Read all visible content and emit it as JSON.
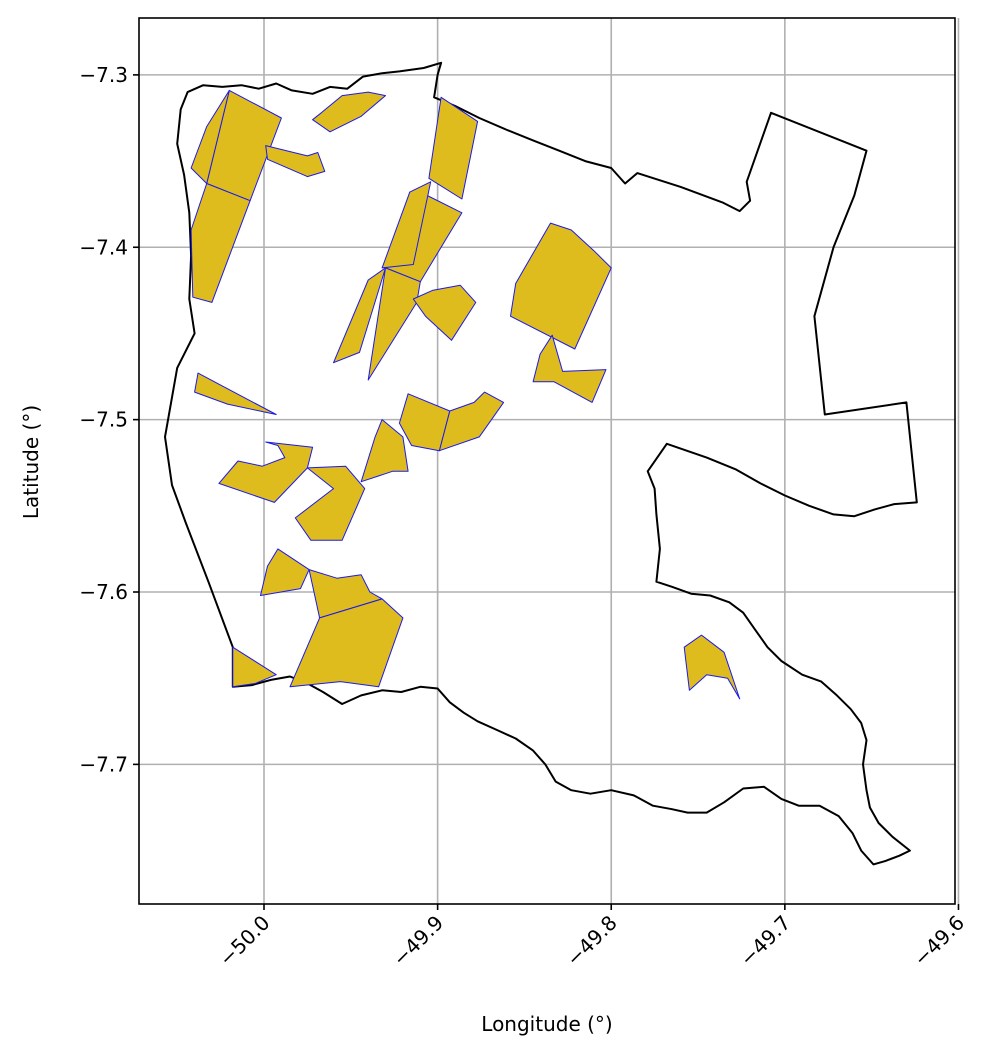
{
  "chart_data": {
    "type": "map",
    "xlabel": "Longitude (°)",
    "ylabel": "Latitude (°)",
    "xlim": [
      -50.072,
      -49.602
    ],
    "ylim": [
      -7.781,
      -7.267
    ],
    "x_ticks": [
      -50.0,
      -49.9,
      -49.8,
      -49.7,
      -49.6
    ],
    "x_tick_labels": [
      "−50.0",
      "−49.9",
      "−49.8",
      "−49.7",
      "−49.6"
    ],
    "y_ticks": [
      -7.3,
      -7.4,
      -7.5,
      -7.6,
      -7.7
    ],
    "y_tick_labels": [
      "−7.3",
      "−7.4",
      "−7.5",
      "−7.6",
      "−7.7"
    ],
    "grid": true,
    "boundary_color": "#000000",
    "parcel_fill": "#dfbc1e",
    "parcel_edge": "#1a1aee",
    "boundary": [
      [
        -50.044,
        -7.31
      ],
      [
        -50.035,
        -7.306
      ],
      [
        -50.024,
        -7.307
      ],
      [
        -50.013,
        -7.306
      ],
      [
        -50.003,
        -7.308
      ],
      [
        -49.993,
        -7.305
      ],
      [
        -49.984,
        -7.309
      ],
      [
        -49.972,
        -7.311
      ],
      [
        -49.962,
        -7.307
      ],
      [
        -49.952,
        -7.308
      ],
      [
        -49.943,
        -7.301
      ],
      [
        -49.932,
        -7.299
      ],
      [
        -49.922,
        -7.298
      ],
      [
        -49.908,
        -7.296
      ],
      [
        -49.898,
        -7.293
      ],
      [
        -49.9,
        -7.3
      ],
      [
        -49.902,
        -7.313
      ],
      [
        -49.89,
        -7.318
      ],
      [
        -49.876,
        -7.325
      ],
      [
        -49.86,
        -7.332
      ],
      [
        -49.845,
        -7.338
      ],
      [
        -49.83,
        -7.344
      ],
      [
        -49.815,
        -7.35
      ],
      [
        -49.8,
        -7.354
      ],
      [
        -49.792,
        -7.363
      ],
      [
        -49.785,
        -7.357
      ],
      [
        -49.76,
        -7.365
      ],
      [
        -49.736,
        -7.374
      ],
      [
        -49.726,
        -7.379
      ],
      [
        -49.72,
        -7.373
      ],
      [
        -49.722,
        -7.362
      ],
      [
        -49.708,
        -7.322
      ],
      [
        -49.653,
        -7.344
      ],
      [
        -49.66,
        -7.37
      ],
      [
        -49.672,
        -7.4
      ],
      [
        -49.683,
        -7.44
      ],
      [
        -49.677,
        -7.497
      ],
      [
        -49.63,
        -7.49
      ],
      [
        -49.624,
        -7.548
      ],
      [
        -49.637,
        -7.549
      ],
      [
        -49.648,
        -7.552
      ],
      [
        -49.66,
        -7.556
      ],
      [
        -49.672,
        -7.555
      ],
      [
        -49.686,
        -7.55
      ],
      [
        -49.7,
        -7.544
      ],
      [
        -49.714,
        -7.537
      ],
      [
        -49.728,
        -7.529
      ],
      [
        -49.745,
        -7.522
      ],
      [
        -49.768,
        -7.514
      ],
      [
        -49.779,
        -7.53
      ],
      [
        -49.775,
        -7.54
      ],
      [
        -49.774,
        -7.555
      ],
      [
        -49.772,
        -7.575
      ],
      [
        -49.774,
        -7.594
      ],
      [
        -49.765,
        -7.597
      ],
      [
        -49.754,
        -7.601
      ],
      [
        -49.743,
        -7.602
      ],
      [
        -49.732,
        -7.606
      ],
      [
        -49.724,
        -7.612
      ],
      [
        -49.717,
        -7.622
      ],
      [
        -49.71,
        -7.632
      ],
      [
        -49.702,
        -7.64
      ],
      [
        -49.69,
        -7.648
      ],
      [
        -49.679,
        -7.652
      ],
      [
        -49.67,
        -7.66
      ],
      [
        -49.662,
        -7.668
      ],
      [
        -49.656,
        -7.676
      ],
      [
        -49.653,
        -7.686
      ],
      [
        -49.655,
        -7.7
      ],
      [
        -49.653,
        -7.715
      ],
      [
        -49.651,
        -7.725
      ],
      [
        -49.646,
        -7.734
      ],
      [
        -49.638,
        -7.742
      ],
      [
        -49.628,
        -7.75
      ],
      [
        -49.634,
        -7.753
      ],
      [
        -49.642,
        -7.756
      ],
      [
        -49.649,
        -7.758
      ],
      [
        -49.656,
        -7.75
      ],
      [
        -49.661,
        -7.74
      ],
      [
        -49.669,
        -7.73
      ],
      [
        -49.68,
        -7.724
      ],
      [
        -49.692,
        -7.724
      ],
      [
        -49.702,
        -7.72
      ],
      [
        -49.712,
        -7.713
      ],
      [
        -49.724,
        -7.714
      ],
      [
        -49.735,
        -7.722
      ],
      [
        -49.745,
        -7.728
      ],
      [
        -49.756,
        -7.728
      ],
      [
        -49.765,
        -7.726
      ],
      [
        -49.776,
        -7.724
      ],
      [
        -49.787,
        -7.718
      ],
      [
        -49.8,
        -7.715
      ],
      [
        -49.812,
        -7.717
      ],
      [
        -49.823,
        -7.715
      ],
      [
        -49.832,
        -7.71
      ],
      [
        -49.838,
        -7.7
      ],
      [
        -49.845,
        -7.692
      ],
      [
        -49.855,
        -7.685
      ],
      [
        -49.866,
        -7.68
      ],
      [
        -49.877,
        -7.675
      ],
      [
        -49.885,
        -7.67
      ],
      [
        -49.893,
        -7.664
      ],
      [
        -49.9,
        -7.656
      ],
      [
        -49.91,
        -7.655
      ],
      [
        -49.921,
        -7.658
      ],
      [
        -49.932,
        -7.657
      ],
      [
        -49.944,
        -7.66
      ],
      [
        -49.955,
        -7.665
      ],
      [
        -49.966,
        -7.658
      ],
      [
        -49.975,
        -7.653
      ],
      [
        -49.985,
        -7.649
      ],
      [
        -49.996,
        -7.651
      ],
      [
        -50.007,
        -7.654
      ],
      [
        -50.018,
        -7.655
      ],
      [
        -50.018,
        -7.632
      ],
      [
        -50.032,
        -7.594
      ],
      [
        -50.045,
        -7.56
      ],
      [
        -50.053,
        -7.538
      ],
      [
        -50.057,
        -7.51
      ],
      [
        -50.05,
        -7.47
      ],
      [
        -50.04,
        -7.45
      ],
      [
        -50.043,
        -7.43
      ],
      [
        -50.042,
        -7.405
      ],
      [
        -50.043,
        -7.38
      ],
      [
        -50.046,
        -7.358
      ],
      [
        -50.05,
        -7.34
      ],
      [
        -50.048,
        -7.32
      ],
      [
        -50.044,
        -7.31
      ]
    ],
    "parcels": [
      [
        [
          -50.02,
          -7.309
        ],
        [
          -49.99,
          -7.325
        ],
        [
          -50.008,
          -7.373
        ],
        [
          -50.033,
          -7.363
        ]
      ],
      [
        [
          -50.02,
          -7.309
        ],
        [
          -50.033,
          -7.363
        ],
        [
          -50.042,
          -7.354
        ],
        [
          -50.033,
          -7.33
        ]
      ],
      [
        [
          -50.033,
          -7.363
        ],
        [
          -50.008,
          -7.373
        ],
        [
          -50.03,
          -7.432
        ],
        [
          -50.041,
          -7.429
        ],
        [
          -50.042,
          -7.39
        ]
      ],
      [
        [
          -49.999,
          -7.341
        ],
        [
          -49.975,
          -7.347
        ],
        [
          -49.969,
          -7.345
        ],
        [
          -49.965,
          -7.356
        ],
        [
          -49.975,
          -7.359
        ],
        [
          -49.998,
          -7.349
        ]
      ],
      [
        [
          -49.967,
          -7.322
        ],
        [
          -49.955,
          -7.312
        ],
        [
          -49.94,
          -7.31
        ],
        [
          -49.93,
          -7.312
        ],
        [
          -49.944,
          -7.324
        ],
        [
          -49.962,
          -7.333
        ],
        [
          -49.972,
          -7.326
        ]
      ],
      [
        [
          -49.898,
          -7.313
        ],
        [
          -49.877,
          -7.327
        ],
        [
          -49.886,
          -7.372
        ],
        [
          -49.905,
          -7.36
        ]
      ],
      [
        [
          -49.916,
          -7.368
        ],
        [
          -49.906,
          -7.37
        ],
        [
          -49.886,
          -7.38
        ],
        [
          -49.91,
          -7.42
        ],
        [
          -49.93,
          -7.412
        ]
      ],
      [
        [
          -49.932,
          -7.412
        ],
        [
          -49.916,
          -7.368
        ],
        [
          -49.904,
          -7.362
        ],
        [
          -49.914,
          -7.41
        ]
      ],
      [
        [
          -49.93,
          -7.412
        ],
        [
          -49.945,
          -7.461
        ],
        [
          -49.96,
          -7.467
        ],
        [
          -49.94,
          -7.419
        ]
      ],
      [
        [
          -49.91,
          -7.42
        ],
        [
          -49.912,
          -7.432
        ],
        [
          -49.94,
          -7.477
        ],
        [
          -49.93,
          -7.412
        ]
      ],
      [
        [
          -49.914,
          -7.43
        ],
        [
          -49.903,
          -7.425
        ],
        [
          -49.887,
          -7.422
        ],
        [
          -49.878,
          -7.432
        ],
        [
          -49.892,
          -7.454
        ],
        [
          -49.907,
          -7.44
        ]
      ],
      [
        [
          -49.835,
          -7.386
        ],
        [
          -49.855,
          -7.421
        ],
        [
          -49.858,
          -7.44
        ],
        [
          -49.821,
          -7.459
        ],
        [
          -49.8,
          -7.412
        ],
        [
          -49.81,
          -7.402
        ],
        [
          -49.823,
          -7.39
        ]
      ],
      [
        [
          -49.834,
          -7.451
        ],
        [
          -49.828,
          -7.472
        ],
        [
          -49.803,
          -7.471
        ],
        [
          -49.811,
          -7.49
        ],
        [
          -49.833,
          -7.478
        ],
        [
          -49.845,
          -7.478
        ],
        [
          -49.841,
          -7.462
        ]
      ],
      [
        [
          -50.038,
          -7.473
        ],
        [
          -49.993,
          -7.497
        ],
        [
          -50.021,
          -7.491
        ],
        [
          -50.04,
          -7.484
        ]
      ],
      [
        [
          -49.999,
          -7.513
        ],
        [
          -49.992,
          -7.515
        ],
        [
          -49.988,
          -7.522
        ],
        [
          -50.001,
          -7.527
        ],
        [
          -50.015,
          -7.524
        ],
        [
          -50.026,
          -7.537
        ],
        [
          -49.994,
          -7.548
        ],
        [
          -49.975,
          -7.528
        ],
        [
          -49.972,
          -7.516
        ]
      ],
      [
        [
          -49.975,
          -7.528
        ],
        [
          -49.96,
          -7.54
        ],
        [
          -49.982,
          -7.557
        ],
        [
          -49.973,
          -7.57
        ],
        [
          -49.955,
          -7.57
        ],
        [
          -49.942,
          -7.54
        ],
        [
          -49.953,
          -7.527
        ]
      ],
      [
        [
          -49.932,
          -7.5
        ],
        [
          -49.92,
          -7.51
        ],
        [
          -49.917,
          -7.53
        ],
        [
          -49.926,
          -7.53
        ],
        [
          -49.944,
          -7.536
        ],
        [
          -49.936,
          -7.51
        ]
      ],
      [
        [
          -49.917,
          -7.485
        ],
        [
          -49.893,
          -7.495
        ],
        [
          -49.899,
          -7.518
        ],
        [
          -49.915,
          -7.515
        ],
        [
          -49.922,
          -7.502
        ]
      ],
      [
        [
          -49.879,
          -7.49
        ],
        [
          -49.893,
          -7.495
        ],
        [
          -49.899,
          -7.518
        ],
        [
          -49.876,
          -7.51
        ],
        [
          -49.862,
          -7.49
        ],
        [
          -49.873,
          -7.484
        ]
      ],
      [
        [
          -49.992,
          -7.575
        ],
        [
          -49.974,
          -7.587
        ],
        [
          -49.979,
          -7.598
        ],
        [
          -50.002,
          -7.602
        ],
        [
          -49.998,
          -7.585
        ]
      ],
      [
        [
          -49.974,
          -7.587
        ],
        [
          -49.958,
          -7.592
        ],
        [
          -49.944,
          -7.59
        ],
        [
          -49.939,
          -7.6
        ],
        [
          -49.932,
          -7.604
        ],
        [
          -49.968,
          -7.615
        ]
      ],
      [
        [
          -49.968,
          -7.615
        ],
        [
          -49.932,
          -7.604
        ],
        [
          -49.92,
          -7.615
        ],
        [
          -49.934,
          -7.655
        ],
        [
          -49.956,
          -7.652
        ],
        [
          -49.985,
          -7.655
        ]
      ],
      [
        [
          -50.018,
          -7.632
        ],
        [
          -50.018,
          -7.655
        ],
        [
          -50.005,
          -7.653
        ],
        [
          -49.993,
          -7.648
        ]
      ],
      [
        [
          -49.758,
          -7.632
        ],
        [
          -49.748,
          -7.625
        ],
        [
          -49.735,
          -7.635
        ],
        [
          -49.726,
          -7.662
        ],
        [
          -49.733,
          -7.65
        ],
        [
          -49.745,
          -7.648
        ],
        [
          -49.755,
          -7.657
        ]
      ]
    ]
  }
}
